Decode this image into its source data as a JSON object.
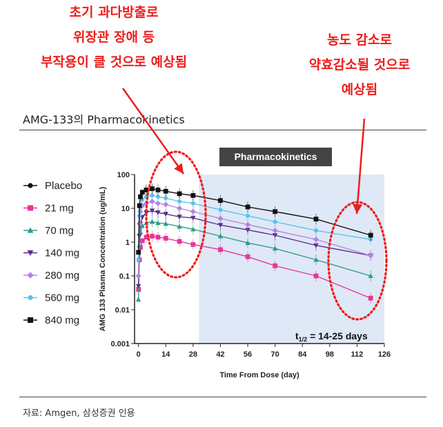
{
  "annotations": {
    "left": [
      "초기 과다방출로",
      "위장관 장애 등",
      "부작용이 클 것으로 예상됨"
    ],
    "right": [
      "농도 감소로",
      "약효감소될 것으로",
      "예상됨"
    ]
  },
  "section_title": "AMG-133의 Pharmacokinetics",
  "source": "자료: Amgen, 삼성증권 인용",
  "colors": {
    "annotation": "#ee1c1c",
    "shade": "#dfe8f6",
    "banner": "#444444"
  },
  "chart_data": {
    "type": "line",
    "title": "Pharmacokinetics",
    "xlabel": "Time From Dose (day)",
    "ylabel": "AMG 133 Plasma Concentration (ug/mL)",
    "xlim": [
      -2,
      126
    ],
    "ylim": [
      0.001,
      100
    ],
    "yscale": "log",
    "x_ticks": [
      0,
      14,
      28,
      42,
      56,
      70,
      84,
      98,
      112,
      126
    ],
    "y_ticks": [
      0.001,
      0.01,
      0.1,
      1,
      10,
      100
    ],
    "y_tick_labels": [
      "0.001",
      "0.01",
      "0.1",
      "1",
      "10",
      "100"
    ],
    "annotation_text": "t1/2 = 14-25 days",
    "annotation_main": "t",
    "annotation_sub": "1/2",
    "annotation_rest": " = 14-25 days",
    "shaded_x_range": [
      31,
      126
    ],
    "legend_position": "left",
    "series": [
      {
        "name": "Placebo",
        "color": "#111111",
        "marker": "circle",
        "x": [],
        "y": []
      },
      {
        "name": "21 mg",
        "color": "#e6369a",
        "marker": "square",
        "x": [
          0,
          0.5,
          1,
          2,
          4,
          7,
          10,
          14,
          21,
          28,
          42,
          56,
          70,
          91,
          119
        ],
        "y": [
          0.04,
          0.3,
          0.7,
          1.1,
          1.4,
          1.5,
          1.4,
          1.3,
          1.05,
          0.85,
          0.6,
          0.37,
          0.2,
          0.1,
          0.022
        ]
      },
      {
        "name": "70 mg",
        "color": "#2e9c8c",
        "marker": "triangle",
        "x": [
          0,
          0.5,
          1,
          2,
          4,
          7,
          10,
          14,
          21,
          28,
          42,
          56,
          70,
          91,
          119
        ],
        "y": [
          0.02,
          0.8,
          2.0,
          3.0,
          3.7,
          4.0,
          3.7,
          3.5,
          2.9,
          2.4,
          1.5,
          0.95,
          0.65,
          0.3,
          0.1
        ]
      },
      {
        "name": "140 mg",
        "color": "#5a2d8c",
        "marker": "triangle-down",
        "x": [
          0,
          0.5,
          1,
          2,
          4,
          7,
          10,
          14,
          21,
          28,
          42,
          56,
          70,
          91,
          119
        ],
        "y": [
          0.05,
          1.5,
          3.5,
          5.5,
          7.5,
          8.5,
          7.5,
          6.8,
          5.6,
          5.2,
          3.2,
          2.3,
          1.6,
          0.8,
          0.4
        ]
      },
      {
        "name": "280 mg",
        "color": "#b684e0",
        "marker": "diamond",
        "x": [
          0,
          0.5,
          1,
          2,
          4,
          7,
          10,
          14,
          21,
          28,
          42,
          56,
          70,
          91,
          119
        ],
        "y": [
          0.1,
          3.5,
          8.0,
          12,
          14,
          16,
          14,
          13,
          10,
          8.0,
          5.0,
          3.3,
          2.2,
          1.2,
          0.4
        ]
      },
      {
        "name": "560 mg",
        "color": "#56c3ee",
        "marker": "circle",
        "x": [
          0,
          0.5,
          1,
          2,
          4,
          7,
          10,
          14,
          21,
          28,
          42,
          56,
          70,
          91,
          119
        ],
        "y": [
          0.3,
          6.0,
          12,
          18,
          22,
          24,
          22,
          20,
          16,
          14,
          9.0,
          6.0,
          4.0,
          2.2,
          1.2
        ]
      },
      {
        "name": "840 mg",
        "color": "#111111",
        "marker": "square",
        "x": [
          0,
          0.5,
          1,
          2,
          4,
          7,
          10,
          14,
          21,
          28,
          42,
          56,
          70,
          91,
          119
        ],
        "y": [
          0.5,
          12,
          22,
          30,
          35,
          38,
          35,
          32,
          27,
          24,
          17,
          11,
          8.0,
          4.8,
          1.6
        ]
      }
    ]
  }
}
